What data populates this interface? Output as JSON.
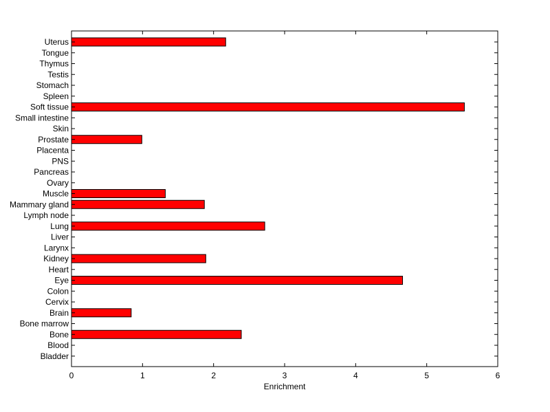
{
  "chart_data": {
    "type": "bar",
    "orientation": "horizontal",
    "categories": [
      "Uterus",
      "Tongue",
      "Thymus",
      "Testis",
      "Stomach",
      "Spleen",
      "Soft tissue",
      "Small intestine",
      "Skin",
      "Prostate",
      "Placenta",
      "PNS",
      "Pancreas",
      "Ovary",
      "Muscle",
      "Mammary gland",
      "Lymph node",
      "Lung",
      "Liver",
      "Larynx",
      "Kidney",
      "Heart",
      "Eye",
      "Colon",
      "Cervix",
      "Brain",
      "Bone marrow",
      "Bone",
      "Blood",
      "Bladder"
    ],
    "values": [
      2.17,
      0,
      0,
      0,
      0,
      0,
      5.53,
      0,
      0,
      0.99,
      0,
      0,
      0,
      0,
      1.32,
      1.87,
      0,
      2.72,
      0,
      0,
      1.89,
      0,
      4.66,
      0,
      0,
      0.84,
      0,
      2.39,
      0,
      0
    ],
    "xlabel": "Enrichment",
    "ylabel": "",
    "xlim": [
      0,
      6
    ],
    "xticks": [
      "0",
      "1",
      "2",
      "3",
      "4",
      "5",
      "6"
    ],
    "grid": false,
    "colors": {
      "bar_fill": "#ff0000",
      "bar_edge": "#000000",
      "axes": "#000000"
    }
  }
}
